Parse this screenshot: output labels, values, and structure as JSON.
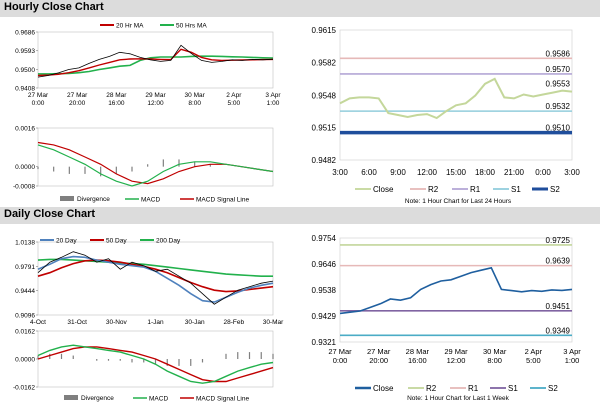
{
  "sections": {
    "hourly_title": "Hourly Close Chart",
    "daily_title": "Daily Close Chart"
  },
  "colors": {
    "ma_short": "#c00000",
    "ma_long": "#22b14c",
    "ma_200": "#22b14c",
    "ma_20d": "#4f81bd",
    "price": "#000000",
    "divergence": "#7f7f7f",
    "close_hourly": "#c4d79b",
    "close_daily": "#1f5f9f",
    "r2": "#e6b9b8",
    "r1": "#b4a7d6",
    "s1": "#92cddc",
    "s2": "#1f4e9c",
    "r2_daily": "#c3d69b",
    "r1_daily": "#e6b9b8",
    "s1_daily": "#8064a2",
    "s2_daily": "#4bacc6"
  },
  "chart_data": [
    {
      "id": "hourly_price",
      "type": "line",
      "legend": [
        "20 Hr MA",
        "50 Hrs MA"
      ],
      "yticks": [
        "0.9686",
        "0.9593",
        "0.9500",
        "0.9408"
      ],
      "ylim": [
        0.9408,
        0.9686
      ],
      "xticks": [
        "27 Mar 0:00",
        "27 Mar 20:00",
        "28 Mar 16:00",
        "29 Mar 12:00",
        "30 Mar 8:00",
        "2 Apr 5:00",
        "3 Apr 1:00"
      ],
      "series": [
        {
          "name": "Close",
          "values": [
            0.9462,
            0.947,
            0.9483,
            0.95,
            0.9508,
            0.953,
            0.955,
            0.9565,
            0.9585,
            0.9578,
            0.956,
            0.9548,
            0.954,
            0.9545,
            0.962,
            0.958,
            0.9545,
            0.9535,
            0.954,
            0.9548,
            0.9545,
            0.955,
            0.9548,
            0.9551
          ]
        },
        {
          "name": "20 Hr MA",
          "values": [
            0.947,
            0.9472,
            0.9476,
            0.9484,
            0.9494,
            0.9508,
            0.9522,
            0.9535,
            0.9548,
            0.9552,
            0.9553,
            0.9552,
            0.955,
            0.9549,
            0.96,
            0.9585,
            0.956,
            0.9548,
            0.9545,
            0.9546,
            0.9547,
            0.9548,
            0.9549,
            0.955
          ]
        },
        {
          "name": "50 Hrs MA",
          "values": [
            0.9478,
            0.9478,
            0.9479,
            0.948,
            0.9484,
            0.949,
            0.95,
            0.9508,
            0.9516,
            0.952,
            0.9545,
            0.9558,
            0.9562,
            0.9562,
            0.9562,
            0.9565,
            0.9566,
            0.9566,
            0.9565,
            0.9563,
            0.9562,
            0.956,
            0.9558,
            0.9557
          ]
        }
      ]
    },
    {
      "id": "hourly_macd",
      "type": "line",
      "yticks": [
        "0.0016",
        "0.0000",
        "-0.0008"
      ],
      "ylim": [
        -0.0008,
        0.0016
      ],
      "legend": [
        "Divergence",
        "MACD",
        "MACD Signal Line"
      ],
      "series": [
        {
          "name": "MACD",
          "values": [
            0.0009,
            0.0007,
            0.0004,
            0.0001,
            -0.0003,
            -0.0006,
            -0.0008,
            -0.0006,
            -0.0002,
            0.0001,
            0.0002,
            0.0002,
            0.0001,
            0.0,
            -0.0001,
            -0.0002
          ]
        },
        {
          "name": "MACD Signal Line",
          "values": [
            0.001,
            0.0009,
            0.0007,
            0.0004,
            0.0001,
            -0.0003,
            -0.0006,
            -0.0007,
            -0.0005,
            -0.0002,
            0.0,
            0.0001,
            0.0001,
            0.0,
            -0.0001,
            -0.0002
          ]
        },
        {
          "name": "Divergence",
          "values": [
            -0.0001,
            -0.0002,
            -0.0003,
            -0.0003,
            -0.0004,
            -0.0003,
            -0.0002,
            0.0001,
            0.0003,
            0.0003,
            0.0002,
            0.0001,
            0.0,
            0.0,
            0.0,
            0.0
          ]
        }
      ]
    },
    {
      "id": "hourly_pivots",
      "type": "line",
      "yticks": [
        "0.9615",
        "0.9582",
        "0.9548",
        "0.9515",
        "0.9482"
      ],
      "ylim": [
        0.9482,
        0.9615
      ],
      "xticks": [
        "3:00",
        "6:00",
        "9:00",
        "12:00",
        "15:00",
        "18:00",
        "21:00",
        "0:00",
        "3:00"
      ],
      "levels": [
        {
          "name": "R2",
          "value": 0.9586,
          "label": "0.9586"
        },
        {
          "name": "R1",
          "value": 0.957,
          "label": "0.9570"
        },
        {
          "name": "S1",
          "value": 0.9532,
          "label": "0.9532"
        },
        {
          "name": "S2",
          "value": 0.951,
          "label": "0.9510"
        }
      ],
      "annotation": "0.9553",
      "legend": [
        "Close",
        "R2",
        "R1",
        "S1",
        "S2"
      ],
      "note": "Note: 1 Hour Chart for Last 24 Hours",
      "series": [
        {
          "name": "Close",
          "values": [
            0.954,
            0.9545,
            0.9546,
            0.9546,
            0.9545,
            0.953,
            0.9528,
            0.9526,
            0.9528,
            0.9529,
            0.9525,
            0.9532,
            0.9538,
            0.954,
            0.9548,
            0.956,
            0.9565,
            0.9546,
            0.9545,
            0.9549,
            0.9547,
            0.9549,
            0.9551,
            0.9553,
            0.9552
          ]
        }
      ]
    },
    {
      "id": "daily_price",
      "type": "line",
      "legend": [
        "20 Day",
        "50 Day",
        "200 Day"
      ],
      "yticks": [
        "1.0138",
        "0.9791",
        "0.9444",
        "0.9096"
      ],
      "ylim": [
        0.9096,
        1.0138
      ],
      "xticks": [
        "4-Oct",
        "31-Oct",
        "30-Nov",
        "1-Jan",
        "30-Jan",
        "28-Feb",
        "30-Mar"
      ],
      "series": [
        {
          "name": "Close",
          "values": [
            0.97,
            0.985,
            0.992,
            1.0,
            0.995,
            0.985,
            0.99,
            0.975,
            0.985,
            0.98,
            0.972,
            0.975,
            0.965,
            0.955,
            0.94,
            0.925,
            0.935,
            0.945,
            0.95,
            0.955,
            0.958
          ]
        },
        {
          "name": "20 Day",
          "values": [
            0.975,
            0.982,
            0.99,
            0.993,
            0.992,
            0.988,
            0.985,
            0.982,
            0.98,
            0.978,
            0.972,
            0.962,
            0.952,
            0.94,
            0.93,
            0.928,
            0.935,
            0.942,
            0.948,
            0.952,
            0.955
          ]
        },
        {
          "name": "50 Day",
          "values": [
            0.965,
            0.97,
            0.977,
            0.983,
            0.987,
            0.988,
            0.987,
            0.985,
            0.982,
            0.979,
            0.975,
            0.97,
            0.963,
            0.956,
            0.95,
            0.945,
            0.943,
            0.944,
            0.946,
            0.948,
            0.95
          ]
        },
        {
          "name": "200 Day",
          "values": [
            0.988,
            0.989,
            0.989,
            0.988,
            0.987,
            0.986,
            0.985,
            0.984,
            0.983,
            0.982,
            0.98,
            0.978,
            0.976,
            0.974,
            0.972,
            0.97,
            0.968,
            0.967,
            0.966,
            0.965,
            0.965
          ]
        }
      ]
    },
    {
      "id": "daily_macd",
      "type": "line",
      "yticks": [
        "0.0162",
        "0.0000",
        "-0.0162"
      ],
      "ylim": [
        -0.0162,
        0.0162
      ],
      "legend": [
        "Divergence",
        "MACD",
        "MACD Signal Line"
      ],
      "series": [
        {
          "name": "MACD",
          "values": [
            0.002,
            0.005,
            0.007,
            0.008,
            0.007,
            0.006,
            0.005,
            0.004,
            0.002,
            0.0,
            -0.003,
            -0.007,
            -0.01,
            -0.013,
            -0.014,
            -0.013,
            -0.01,
            -0.007,
            -0.005,
            -0.003,
            -0.002
          ]
        },
        {
          "name": "MACD Signal Line",
          "values": [
            0.0,
            0.002,
            0.004,
            0.006,
            0.007,
            0.007,
            0.006,
            0.005,
            0.004,
            0.002,
            0.0,
            -0.003,
            -0.006,
            -0.009,
            -0.012,
            -0.013,
            -0.013,
            -0.011,
            -0.009,
            -0.007,
            -0.005
          ]
        },
        {
          "name": "Divergence",
          "values": [
            0.002,
            0.003,
            0.003,
            0.002,
            0.0,
            -0.001,
            -0.001,
            -0.001,
            -0.002,
            -0.002,
            -0.003,
            -0.004,
            -0.004,
            -0.004,
            -0.002,
            0.0,
            0.003,
            0.004,
            0.004,
            0.004,
            0.003
          ]
        }
      ]
    },
    {
      "id": "daily_pivots",
      "type": "line",
      "yticks": [
        "0.9754",
        "0.9646",
        "0.9538",
        "0.9429",
        "0.9321"
      ],
      "ylim": [
        0.9321,
        0.9754
      ],
      "xticks": [
        "27 Mar 0:00",
        "27 Mar 20:00",
        "28 Mar 16:00",
        "29 Mar 12:00",
        "30 Mar 8:00",
        "2 Apr 5:00",
        "3 Apr 1:00"
      ],
      "levels": [
        {
          "name": "R2",
          "value": 0.9725,
          "label": "0.9725"
        },
        {
          "name": "R1",
          "value": 0.9639,
          "label": "0.9639"
        },
        {
          "name": "S1",
          "value": 0.9451,
          "label": "0.9451"
        },
        {
          "name": "S2",
          "value": 0.9349,
          "label": "0.9349"
        }
      ],
      "legend": [
        "Close",
        "R2",
        "R1",
        "S1",
        "S2"
      ],
      "note": "Note: 1 Hour Chart for Last 1 Week",
      "series": [
        {
          "name": "Close",
          "values": [
            0.944,
            0.9445,
            0.945,
            0.9465,
            0.948,
            0.95,
            0.9495,
            0.9505,
            0.954,
            0.956,
            0.9575,
            0.958,
            0.9595,
            0.961,
            0.962,
            0.963,
            0.954,
            0.9535,
            0.953,
            0.9535,
            0.9532,
            0.9538,
            0.9536,
            0.954
          ]
        }
      ]
    }
  ]
}
